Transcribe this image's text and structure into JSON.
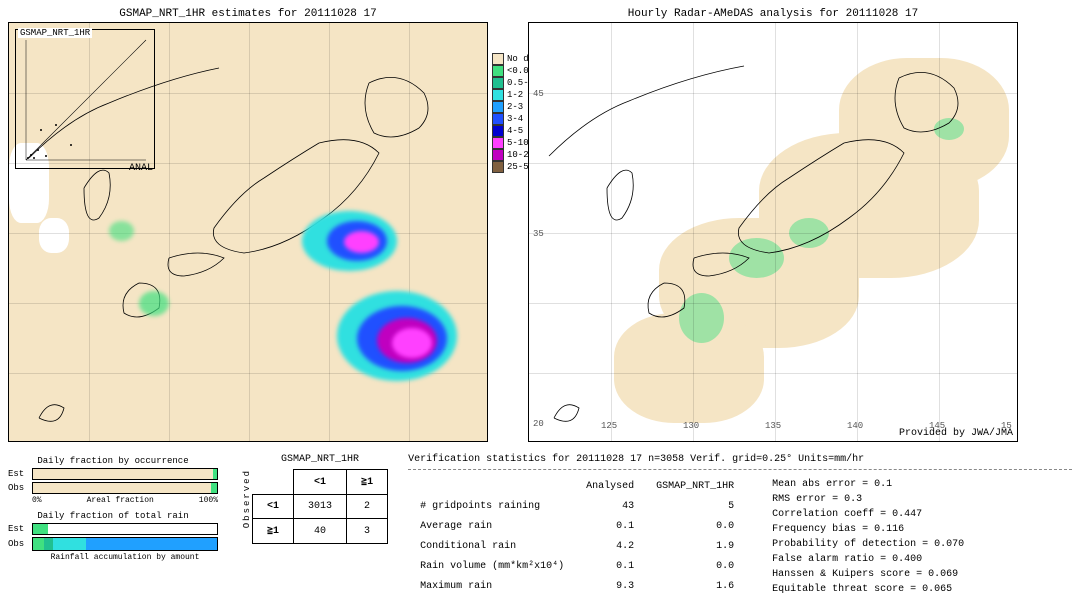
{
  "left_map": {
    "title": "GSMAP_NRT_1HR estimates for 20111028 17",
    "inset_title": "GSMAP_NRT_1HR",
    "anal_label": "ANAL",
    "inset_yticks": [
      "10",
      "8",
      "6",
      "4",
      "2",
      "0"
    ],
    "inset_xticks": [
      "0",
      "2",
      "4",
      "6",
      "8",
      "10"
    ],
    "background_color": "#f5e5c5"
  },
  "right_map": {
    "title": "Hourly Radar-AMeDAS analysis for 20111028 17",
    "provided": "Provided by JWA/JMA",
    "lat_labels": [
      "45",
      "40",
      "35",
      "30",
      "25",
      "20"
    ],
    "lon_labels": [
      "125",
      "130",
      "135",
      "140",
      "145",
      "15"
    ]
  },
  "legend": {
    "items": [
      {
        "label": "No data",
        "color": "#f5e5c5"
      },
      {
        "label": "<0.01",
        "color": "#40e080"
      },
      {
        "label": "0.5-1",
        "color": "#20c090"
      },
      {
        "label": "1-2",
        "color": "#30e0e0"
      },
      {
        "label": "2-3",
        "color": "#20a0ff"
      },
      {
        "label": "3-4",
        "color": "#2050ff"
      },
      {
        "label": "4-5",
        "color": "#0000d0"
      },
      {
        "label": "5-10",
        "color": "#ff40ff"
      },
      {
        "label": "10-25",
        "color": "#c000c0"
      },
      {
        "label": "25-50",
        "color": "#806040"
      }
    ]
  },
  "bars": {
    "occurrence_title": "Daily fraction by occurrence",
    "total_title": "Daily fraction of total rain",
    "areal_axis_label": "Areal fraction",
    "rainfall_axis_label": "Rainfall accumulation by amount",
    "axis_min": "0%",
    "axis_max": "100%",
    "est_label": "Est",
    "obs_label": "Obs",
    "est_occ_fill": 0.98,
    "obs_occ_fill": 0.97,
    "est_occ_color": "#f5e5c5",
    "obs_occ_color": "#f5e5c5",
    "green_tip_color": "#40e080",
    "rain_segments": [
      {
        "w": 0.06,
        "c": "#40e080"
      },
      {
        "w": 0.05,
        "c": "#20c090"
      },
      {
        "w": 0.18,
        "c": "#30e0e0"
      },
      {
        "w": 0.71,
        "c": "#20a0ff"
      }
    ]
  },
  "contingency": {
    "title": "GSMAP_NRT_1HR",
    "col1": "<1",
    "col2": "≧1",
    "row1": "<1",
    "row2": "≧1",
    "side_label": "Observed",
    "cells": {
      "a": "3013",
      "b": "2",
      "c": "40",
      "d": "3"
    }
  },
  "stats": {
    "header": "Verification statistics for 20111028 17  n=3058  Verif. grid=0.25°  Units=mm/hr",
    "col_analysed": "Analysed",
    "col_model": "GSMAP_NRT_1HR",
    "rows": [
      {
        "label": "# gridpoints raining",
        "a": "43",
        "b": "5"
      },
      {
        "label": "Average rain",
        "a": "0.1",
        "b": "0.0"
      },
      {
        "label": "Conditional rain",
        "a": "4.2",
        "b": "1.9"
      },
      {
        "label": "Rain volume (mm*km²x10⁴)",
        "a": "0.1",
        "b": "0.0"
      },
      {
        "label": "Maximum rain",
        "a": "9.3",
        "b": "1.6"
      }
    ],
    "metrics": [
      {
        "label": "Mean abs error",
        "v": "0.1"
      },
      {
        "label": "RMS error",
        "v": "0.3"
      },
      {
        "label": "Correlation coeff",
        "v": "0.447"
      },
      {
        "label": "Frequency bias",
        "v": "0.116"
      },
      {
        "label": "Probability of detection",
        "v": "0.070"
      },
      {
        "label": "False alarm ratio",
        "v": "0.400"
      },
      {
        "label": "Hanssen & Kuipers score",
        "v": "0.069"
      },
      {
        "label": "Equitable threat score",
        "v": "0.065"
      }
    ]
  }
}
